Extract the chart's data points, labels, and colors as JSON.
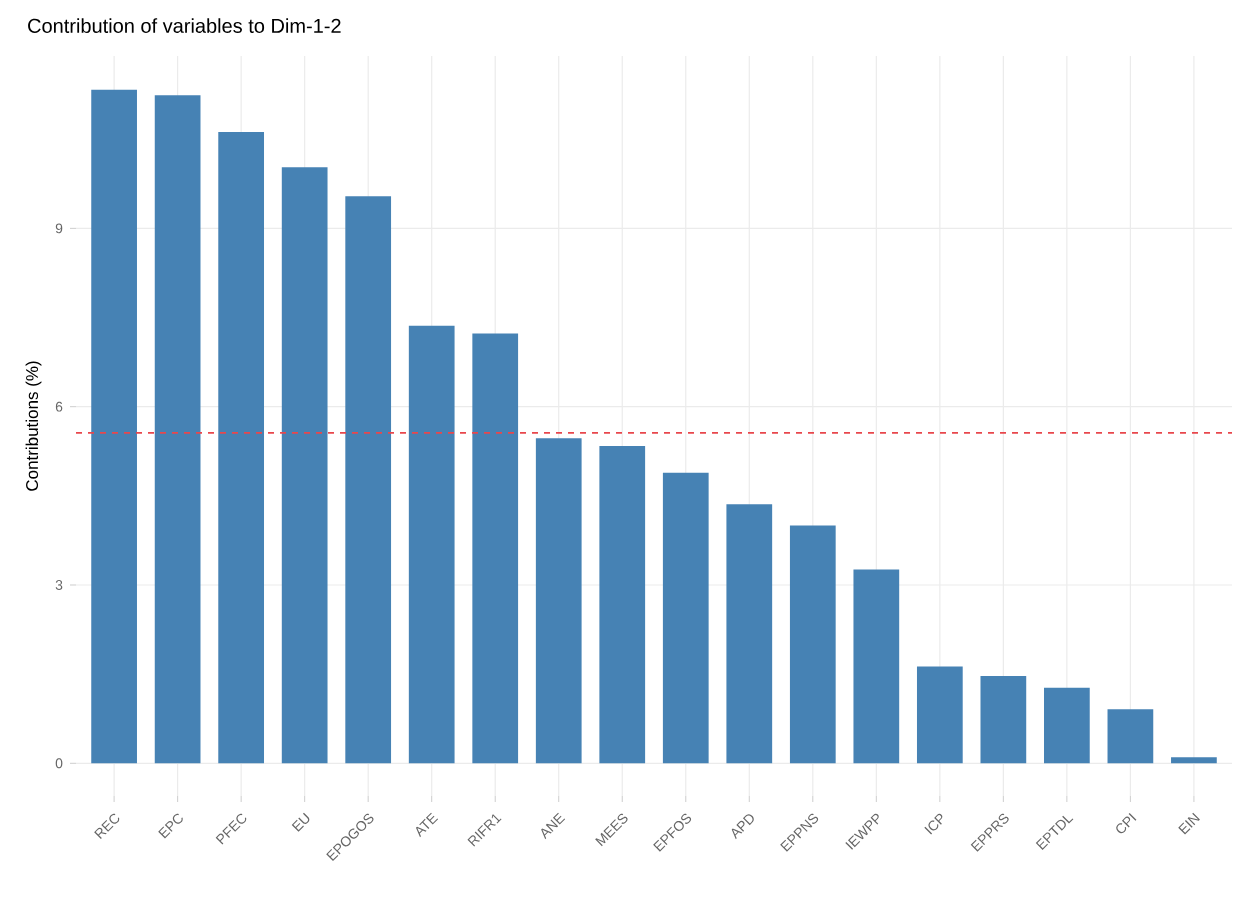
{
  "chart_data": {
    "type": "bar",
    "title": "Contribution of variables to Dim-1-2",
    "ylabel": "Contributions (%)",
    "categories": [
      "REC",
      "EPC",
      "PFEC",
      "EU",
      "EPOGOS",
      "ATE",
      "RIFR1",
      "ANE",
      "MEES",
      "EPFOS",
      "APD",
      "EPPNS",
      "IEWPP",
      "ICP",
      "EPPRS",
      "EPTDL",
      "CPI",
      "EIN"
    ],
    "values": [
      11.33,
      11.24,
      10.62,
      10.03,
      9.54,
      7.36,
      7.23,
      5.47,
      5.34,
      4.89,
      4.36,
      4.0,
      3.26,
      1.63,
      1.47,
      1.27,
      0.91,
      0.1
    ],
    "color": "#4682b4",
    "ylim": [
      -0.55,
      11.9
    ],
    "yticks": [
      0,
      3,
      6,
      9
    ],
    "ref_lines": [
      {
        "axis": "y",
        "value": 5.56,
        "color": "#e8474c",
        "line_style": "dashed"
      }
    ],
    "grid": true
  }
}
